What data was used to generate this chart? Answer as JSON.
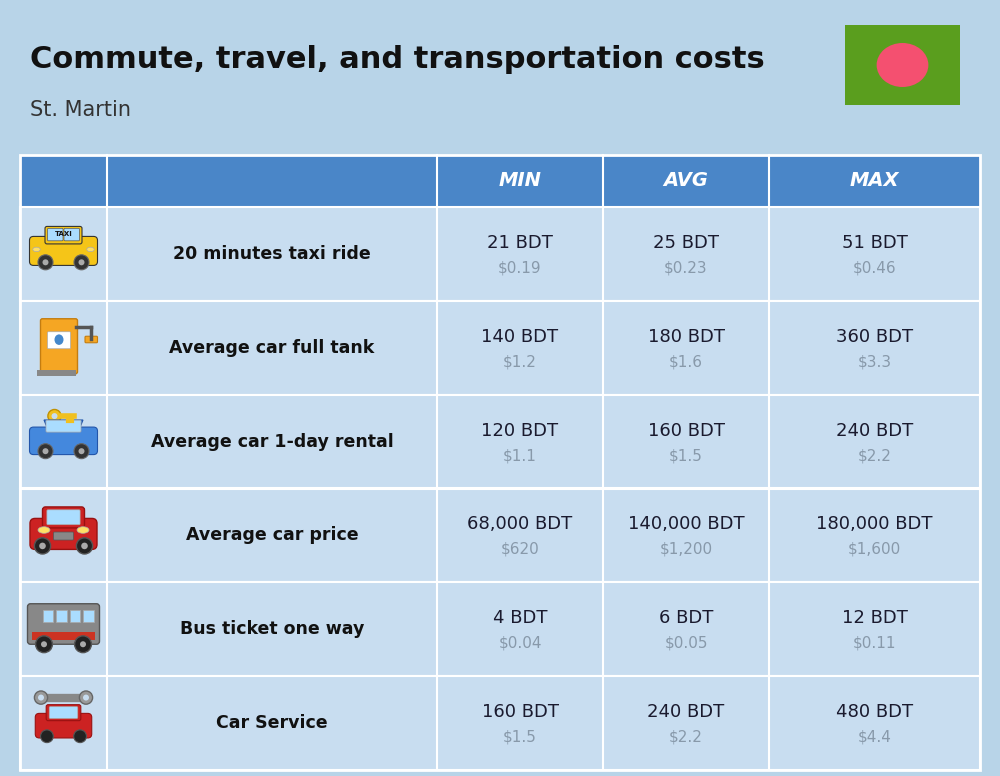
{
  "title": "Commute, travel, and transportation costs",
  "subtitle": "St. Martin",
  "background_color": "#b8d4e8",
  "header_bg_color": "#4a86c8",
  "header_text_color": "#ffffff",
  "row_bg_color": "#c8ddf0",
  "col_headers": [
    "MIN",
    "AVG",
    "MAX"
  ],
  "rows": [
    {
      "label": "20 minutes taxi ride",
      "min_bdt": "21 BDT",
      "min_usd": "$0.19",
      "avg_bdt": "25 BDT",
      "avg_usd": "$0.23",
      "max_bdt": "51 BDT",
      "max_usd": "$0.46"
    },
    {
      "label": "Average car full tank",
      "min_bdt": "140 BDT",
      "min_usd": "$1.2",
      "avg_bdt": "180 BDT",
      "avg_usd": "$1.6",
      "max_bdt": "360 BDT",
      "max_usd": "$3.3"
    },
    {
      "label": "Average car 1-day rental",
      "min_bdt": "120 BDT",
      "min_usd": "$1.1",
      "avg_bdt": "160 BDT",
      "avg_usd": "$1.5",
      "max_bdt": "240 BDT",
      "max_usd": "$2.2"
    },
    {
      "label": "Average car price",
      "min_bdt": "68,000 BDT",
      "min_usd": "$620",
      "avg_bdt": "140,000 BDT",
      "avg_usd": "$1,200",
      "max_bdt": "180,000 BDT",
      "max_usd": "$1,600"
    },
    {
      "label": "Bus ticket one way",
      "min_bdt": "4 BDT",
      "min_usd": "$0.04",
      "avg_bdt": "6 BDT",
      "avg_usd": "$0.05",
      "max_bdt": "12 BDT",
      "max_usd": "$0.11"
    },
    {
      "label": "Car Service",
      "min_bdt": "160 BDT",
      "min_usd": "$1.5",
      "avg_bdt": "240 BDT",
      "avg_usd": "$2.2",
      "max_bdt": "480 BDT",
      "max_usd": "$4.4"
    }
  ],
  "value_color": "#1a1a2e",
  "usd_color": "#8899aa",
  "label_color": "#111111",
  "border_color": "#ffffff",
  "flag_green": "#5a9e1e",
  "flag_red": "#f45070"
}
